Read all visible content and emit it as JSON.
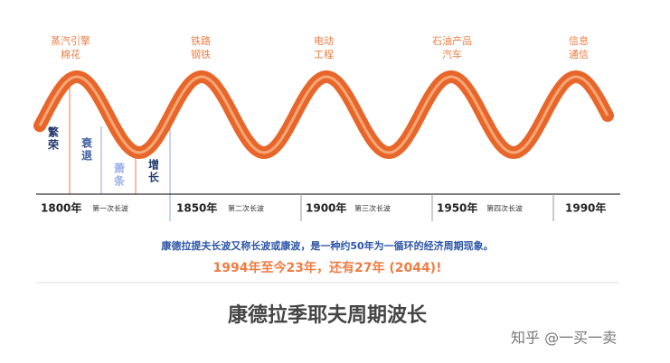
{
  "top_labels": [
    [
      "蒸汽引擎",
      "棉花"
    ],
    [
      "铁路",
      "钢铁"
    ],
    [
      "电动",
      "工程"
    ],
    [
      "石油产品",
      "汽车"
    ],
    [
      "信息",
      "通信"
    ]
  ],
  "phases": [
    "繁荣",
    "衰退",
    "萧条",
    "增长"
  ],
  "timeline": {
    "years": [
      "1800年",
      "1850年",
      "1900年",
      "1950年",
      "1990年"
    ],
    "waves": [
      "第一次长波",
      "第二次长波",
      "第三次长波",
      "第四次长波"
    ]
  },
  "note": "康德拉提夫长波又称长波或康波，是一种约50年为一循环的经济周期现象。",
  "highlight": "1994年至今23年，还有27年 (2044)!",
  "title": "康德拉季耶夫周期波长",
  "watermark": "知乎 @一买一卖"
}
